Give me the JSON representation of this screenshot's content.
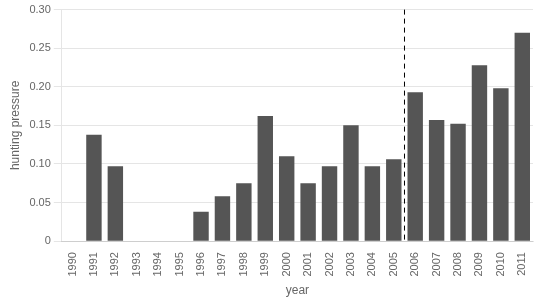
{
  "chart_data": {
    "type": "bar",
    "categories": [
      "1990",
      "1991",
      "1992",
      "1993",
      "1994",
      "1995",
      "1996",
      "1997",
      "1998",
      "1999",
      "2000",
      "2001",
      "2002",
      "2003",
      "2004",
      "2005",
      "2006",
      "2007",
      "2008",
      "2009",
      "2010",
      "2011"
    ],
    "values": [
      0.0,
      0.138,
      0.097,
      0.0,
      0.0,
      0.0,
      0.038,
      0.058,
      0.075,
      0.162,
      0.11,
      0.075,
      0.097,
      0.15,
      0.097,
      0.106,
      0.193,
      0.157,
      0.152,
      0.228,
      0.198,
      0.27
    ],
    "color": "#555555",
    "xlabel": "year",
    "ylabel": "hunting pressure",
    "ylim": [
      0,
      0.3
    ],
    "yticks": [
      0,
      0.05,
      {
        "value": 0.1,
        "label": "0.10"
      },
      0.15,
      {
        "value": 0.2,
        "label": "0.20"
      },
      0.25,
      {
        "value": 0.3,
        "label": "0.30"
      }
    ],
    "grid": true,
    "vlines": [
      {
        "x": 2005.5,
        "line_style": "dashed",
        "color": "#000000"
      }
    ]
  }
}
